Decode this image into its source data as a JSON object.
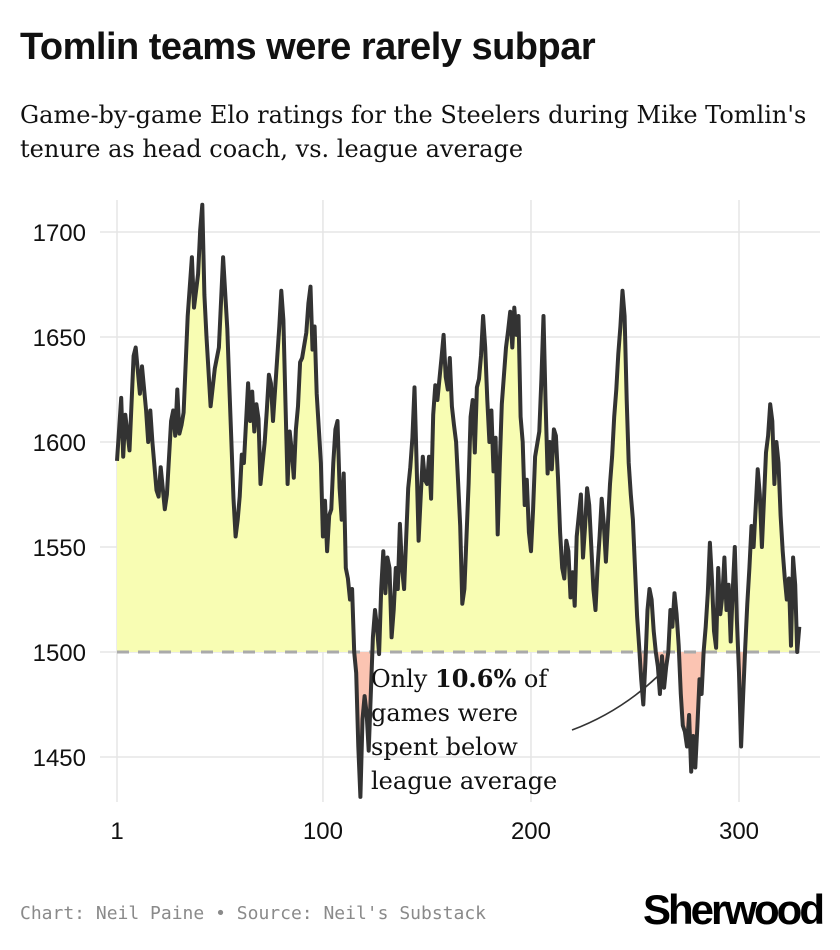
{
  "title": "Tomlin teams were rarely subpar",
  "subtitle": "Game-by-game Elo ratings for the Steelers during Mike Tomlin's tenure as head coach, vs. league average",
  "annotation": {
    "pre": "Only ",
    "bold": "10.6%",
    "post": " of",
    "lines": [
      "games were",
      "spent below",
      "league average"
    ]
  },
  "footer": {
    "credit": "Chart: Neil Paine",
    "bullet": "•",
    "source": "Source: Neil's Substack"
  },
  "logo": "Sherwood",
  "colors": {
    "line": "#333333",
    "above_fill": "#f8fdb3",
    "below_fill": "#fbc4b2",
    "reference": "#aaaaaa",
    "grid": "#e5e5e5"
  },
  "chart_data": {
    "type": "area",
    "title": "Tomlin teams were rarely subpar",
    "xlabel": "",
    "ylabel": "",
    "xlim": [
      1,
      330
    ],
    "ylim": [
      1430,
      1715
    ],
    "xticks": [
      1,
      100,
      200,
      300
    ],
    "yticks": [
      1450,
      1500,
      1550,
      1600,
      1650,
      1700
    ],
    "reference_line": 1500,
    "grid": true,
    "series": [
      {
        "name": "Steelers Elo",
        "points": [
          [
            1,
            1591
          ],
          [
            3,
            1621
          ],
          [
            4,
            1593
          ],
          [
            5,
            1613
          ],
          [
            7,
            1596
          ],
          [
            9,
            1641
          ],
          [
            10,
            1645
          ],
          [
            12,
            1623
          ],
          [
            13,
            1636
          ],
          [
            15,
            1615
          ],
          [
            16,
            1600
          ],
          [
            17,
            1615
          ],
          [
            18,
            1600
          ],
          [
            20,
            1577
          ],
          [
            21,
            1574
          ],
          [
            22,
            1588
          ],
          [
            24,
            1568
          ],
          [
            25,
            1575
          ],
          [
            27,
            1610
          ],
          [
            28,
            1615
          ],
          [
            29,
            1603
          ],
          [
            30,
            1625
          ],
          [
            31,
            1604
          ],
          [
            32,
            1608
          ],
          [
            33,
            1614
          ],
          [
            35,
            1660
          ],
          [
            37,
            1688
          ],
          [
            38,
            1664
          ],
          [
            40,
            1680
          ],
          [
            41,
            1701
          ],
          [
            42,
            1713
          ],
          [
            43,
            1670
          ],
          [
            44,
            1650
          ],
          [
            46,
            1617
          ],
          [
            48,
            1635
          ],
          [
            50,
            1645
          ],
          [
            52,
            1688
          ],
          [
            54,
            1654
          ],
          [
            55,
            1627
          ],
          [
            57,
            1573
          ],
          [
            58,
            1555
          ],
          [
            59,
            1563
          ],
          [
            60,
            1574
          ],
          [
            61,
            1594
          ],
          [
            62,
            1590
          ],
          [
            64,
            1628
          ],
          [
            65,
            1610
          ],
          [
            66,
            1624
          ],
          [
            67,
            1605
          ],
          [
            68,
            1618
          ],
          [
            69,
            1611
          ],
          [
            70,
            1580
          ],
          [
            72,
            1600
          ],
          [
            73,
            1615
          ],
          [
            74,
            1632
          ],
          [
            75,
            1628
          ],
          [
            76,
            1610
          ],
          [
            78,
            1640
          ],
          [
            79,
            1655
          ],
          [
            80,
            1672
          ],
          [
            81,
            1658
          ],
          [
            82,
            1618
          ],
          [
            83,
            1580
          ],
          [
            84,
            1605
          ],
          [
            85,
            1596
          ],
          [
            86,
            1583
          ],
          [
            87,
            1606
          ],
          [
            88,
            1617
          ],
          [
            89,
            1638
          ],
          [
            90,
            1640
          ],
          [
            92,
            1652
          ],
          [
            93,
            1666
          ],
          [
            94,
            1674
          ],
          [
            95,
            1644
          ],
          [
            96,
            1655
          ],
          [
            97,
            1623
          ],
          [
            99,
            1590
          ],
          [
            100,
            1555
          ],
          [
            101,
            1572
          ],
          [
            102,
            1548
          ],
          [
            103,
            1565
          ],
          [
            104,
            1568
          ],
          [
            105,
            1590
          ],
          [
            106,
            1606
          ],
          [
            107,
            1610
          ],
          [
            108,
            1578
          ],
          [
            109,
            1563
          ],
          [
            110,
            1585
          ],
          [
            111,
            1540
          ],
          [
            112,
            1535
          ],
          [
            113,
            1525
          ],
          [
            114,
            1530
          ],
          [
            115,
            1500
          ],
          [
            116,
            1490
          ],
          [
            117,
            1455
          ],
          [
            118,
            1431
          ],
          [
            119,
            1468
          ],
          [
            120,
            1479
          ],
          [
            121,
            1471
          ],
          [
            122,
            1453
          ],
          [
            123,
            1480
          ],
          [
            124,
            1507
          ],
          [
            125,
            1520
          ],
          [
            126,
            1512
          ],
          [
            127,
            1499
          ],
          [
            128,
            1530
          ],
          [
            129,
            1548
          ],
          [
            130,
            1528
          ],
          [
            131,
            1545
          ],
          [
            132,
            1540
          ],
          [
            133,
            1507
          ],
          [
            134,
            1520
          ],
          [
            135,
            1540
          ],
          [
            136,
            1530
          ],
          [
            137,
            1561
          ],
          [
            138,
            1540
          ],
          [
            139,
            1530
          ],
          [
            141,
            1578
          ],
          [
            142,
            1588
          ],
          [
            143,
            1602
          ],
          [
            144,
            1626
          ],
          [
            145,
            1590
          ],
          [
            146,
            1553
          ],
          [
            147,
            1574
          ],
          [
            148,
            1593
          ],
          [
            149,
            1582
          ],
          [
            150,
            1580
          ],
          [
            151,
            1593
          ],
          [
            152,
            1573
          ],
          [
            153,
            1613
          ],
          [
            154,
            1627
          ],
          [
            155,
            1620
          ],
          [
            157,
            1640
          ],
          [
            158,
            1651
          ],
          [
            159,
            1631
          ],
          [
            160,
            1625
          ],
          [
            161,
            1640
          ],
          [
            162,
            1617
          ],
          [
            163,
            1608
          ],
          [
            164,
            1600
          ],
          [
            165,
            1580
          ],
          [
            166,
            1560
          ],
          [
            167,
            1523
          ],
          [
            168,
            1530
          ],
          [
            169,
            1555
          ],
          [
            170,
            1580
          ],
          [
            171,
            1612
          ],
          [
            172,
            1620
          ],
          [
            173,
            1595
          ],
          [
            174,
            1626
          ],
          [
            175,
            1630
          ],
          [
            176,
            1641
          ],
          [
            177,
            1660
          ],
          [
            178,
            1645
          ],
          [
            179,
            1620
          ],
          [
            180,
            1600
          ],
          [
            181,
            1615
          ],
          [
            182,
            1586
          ],
          [
            183,
            1602
          ],
          [
            184,
            1556
          ],
          [
            185,
            1590
          ],
          [
            186,
            1618
          ],
          [
            188,
            1645
          ],
          [
            189,
            1653
          ],
          [
            190,
            1662
          ],
          [
            191,
            1645
          ],
          [
            192,
            1664
          ],
          [
            193,
            1651
          ],
          [
            194,
            1660
          ],
          [
            195,
            1612
          ],
          [
            196,
            1600
          ],
          [
            197,
            1570
          ],
          [
            198,
            1582
          ],
          [
            199,
            1557
          ],
          [
            200,
            1548
          ],
          [
            201,
            1568
          ],
          [
            202,
            1593
          ],
          [
            204,
            1605
          ],
          [
            205,
            1630
          ],
          [
            206,
            1660
          ],
          [
            207,
            1620
          ],
          [
            208,
            1585
          ],
          [
            209,
            1600
          ],
          [
            210,
            1587
          ],
          [
            211,
            1606
          ],
          [
            212,
            1603
          ],
          [
            213,
            1583
          ],
          [
            214,
            1557
          ],
          [
            215,
            1540
          ],
          [
            216,
            1535
          ],
          [
            217,
            1553
          ],
          [
            218,
            1548
          ],
          [
            219,
            1526
          ],
          [
            220,
            1538
          ],
          [
            221,
            1522
          ],
          [
            222,
            1555
          ],
          [
            223,
            1565
          ],
          [
            224,
            1575
          ],
          [
            225,
            1545
          ],
          [
            226,
            1560
          ],
          [
            227,
            1578
          ],
          [
            228,
            1570
          ],
          [
            229,
            1550
          ],
          [
            230,
            1530
          ],
          [
            231,
            1520
          ],
          [
            232,
            1540
          ],
          [
            233,
            1555
          ],
          [
            234,
            1573
          ],
          [
            235,
            1561
          ],
          [
            236,
            1543
          ],
          [
            238,
            1580
          ],
          [
            239,
            1593
          ],
          [
            240,
            1612
          ],
          [
            241,
            1625
          ],
          [
            242,
            1642
          ],
          [
            243,
            1655
          ],
          [
            244,
            1672
          ],
          [
            245,
            1660
          ],
          [
            246,
            1620
          ],
          [
            247,
            1590
          ],
          [
            248,
            1575
          ],
          [
            249,
            1563
          ],
          [
            250,
            1540
          ],
          [
            251,
            1517
          ],
          [
            252,
            1503
          ],
          [
            253,
            1487
          ],
          [
            254,
            1475
          ],
          [
            255,
            1495
          ],
          [
            256,
            1520
          ],
          [
            257,
            1530
          ],
          [
            258,
            1525
          ],
          [
            259,
            1510
          ],
          [
            260,
            1500
          ],
          [
            261,
            1493
          ],
          [
            262,
            1480
          ],
          [
            263,
            1498
          ],
          [
            264,
            1483
          ],
          [
            265,
            1493
          ],
          [
            266,
            1500
          ],
          [
            267,
            1520
          ],
          [
            268,
            1512
          ],
          [
            269,
            1528
          ],
          [
            270,
            1518
          ],
          [
            271,
            1503
          ],
          [
            272,
            1480
          ],
          [
            273,
            1465
          ],
          [
            274,
            1462
          ],
          [
            275,
            1455
          ],
          [
            276,
            1470
          ],
          [
            277,
            1443
          ],
          [
            278,
            1460
          ],
          [
            279,
            1445
          ],
          [
            280,
            1465
          ],
          [
            281,
            1487
          ],
          [
            282,
            1480
          ],
          [
            283,
            1500
          ],
          [
            284,
            1512
          ],
          [
            285,
            1528
          ],
          [
            286,
            1552
          ],
          [
            287,
            1534
          ],
          [
            288,
            1510
          ],
          [
            289,
            1502
          ],
          [
            290,
            1540
          ],
          [
            291,
            1518
          ],
          [
            292,
            1527
          ],
          [
            293,
            1545
          ],
          [
            294,
            1520
          ],
          [
            295,
            1532
          ],
          [
            296,
            1505
          ],
          [
            297,
            1530
          ],
          [
            298,
            1550
          ],
          [
            299,
            1515
          ],
          [
            300,
            1490
          ],
          [
            301,
            1455
          ],
          [
            302,
            1480
          ],
          [
            303,
            1502
          ],
          [
            304,
            1523
          ],
          [
            305,
            1540
          ],
          [
            306,
            1560
          ],
          [
            307,
            1550
          ],
          [
            308,
            1568
          ],
          [
            309,
            1587
          ],
          [
            310,
            1575
          ],
          [
            311,
            1550
          ],
          [
            312,
            1573
          ],
          [
            313,
            1595
          ],
          [
            314,
            1603
          ],
          [
            315,
            1618
          ],
          [
            316,
            1610
          ],
          [
            317,
            1580
          ],
          [
            318,
            1600
          ],
          [
            319,
            1590
          ],
          [
            320,
            1565
          ],
          [
            321,
            1548
          ],
          [
            322,
            1535
          ],
          [
            323,
            1525
          ],
          [
            324,
            1535
          ],
          [
            325,
            1503
          ],
          [
            326,
            1545
          ],
          [
            327,
            1532
          ],
          [
            328,
            1500
          ],
          [
            329,
            1512
          ]
        ]
      }
    ]
  }
}
